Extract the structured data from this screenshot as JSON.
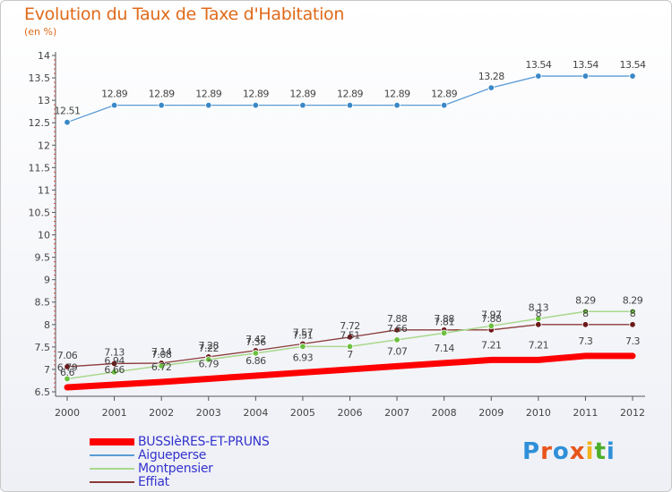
{
  "header": {
    "title": "Evolution du Taux de Taxe d'Habitation",
    "subtitle": "(en %)"
  },
  "logo": {
    "letters": [
      "P",
      "r",
      "o",
      "x",
      "i",
      "t",
      "i"
    ],
    "colors": [
      "#2f8fd8",
      "#e8551b",
      "#2f8fd8",
      "#e8551b",
      "#f2b31a",
      "#4caf2a",
      "#2f8fd8"
    ]
  },
  "chart_data": {
    "type": "line",
    "x": [
      "2000",
      "2001",
      "2002",
      "2003",
      "2004",
      "2005",
      "2006",
      "2007",
      "2008",
      "2009",
      "2010",
      "2011",
      "2012"
    ],
    "ylim": [
      6.5,
      14
    ],
    "yticks": [
      "6.5",
      "7",
      "7.5",
      "8",
      "8.5",
      "9",
      "9.5",
      "10",
      "10.5",
      "11",
      "11.5",
      "12",
      "12.5",
      "13",
      "13.5",
      "14"
    ],
    "grid": false,
    "legend": "bottom-left",
    "series": [
      {
        "name": "BUSSIèRES-ET-PRUNS",
        "color": "#ff0000",
        "width": 7,
        "markers": false,
        "values": [
          6.6,
          6.66,
          6.72,
          6.79,
          6.86,
          6.93,
          7.0,
          7.07,
          7.14,
          7.21,
          7.21,
          7.3,
          7.3
        ],
        "labels": [
          "6.6",
          "6.66",
          "6.72",
          "6.79",
          "6.86",
          "6.93",
          "7",
          "7.07",
          "7.14",
          "7.21",
          "7.21",
          "7.3",
          "7.3"
        ]
      },
      {
        "name": "Aigueperse",
        "color": "#5b9bd5",
        "width": 1.3,
        "markers": true,
        "marker_fill": "#3a88c8",
        "values": [
          12.51,
          12.89,
          12.89,
          12.89,
          12.89,
          12.89,
          12.89,
          12.89,
          12.89,
          13.28,
          13.54,
          13.54,
          13.54
        ],
        "labels": [
          "12.51",
          "12.89",
          "12.89",
          "12.89",
          "12.89",
          "12.89",
          "12.89",
          "12.89",
          "12.89",
          "13.28",
          "13.54",
          "13.54",
          "13.54"
        ]
      },
      {
        "name": "Montpensier",
        "color": "#a8d88c",
        "width": 1.5,
        "markers": true,
        "marker_fill": "#6cc040",
        "values": [
          6.79,
          6.94,
          7.08,
          7.22,
          7.36,
          7.51,
          7.51,
          7.66,
          7.81,
          7.97,
          8.13,
          8.29,
          8.29
        ],
        "labels": [
          "6.79",
          "6.94",
          "7.08",
          "7.22",
          "7.36",
          "7.51",
          "7.51",
          "7.66",
          "7.81",
          "7.97",
          "8.13",
          "8.29",
          "8.29"
        ]
      },
      {
        "name": "Effiat",
        "color": "#8b3a3a",
        "width": 1.3,
        "markers": true,
        "marker_fill": "#6b1a1a",
        "values": [
          7.06,
          7.13,
          7.14,
          7.28,
          7.42,
          7.57,
          7.72,
          7.88,
          7.88,
          7.88,
          8.0,
          8.0,
          8.0
        ],
        "labels": [
          "7.06",
          "7.13",
          "7.14",
          "7.28",
          "7.42",
          "7.57",
          "7.72",
          "7.88",
          "7.88",
          "7.88",
          "8",
          "8",
          "8"
        ]
      }
    ]
  }
}
